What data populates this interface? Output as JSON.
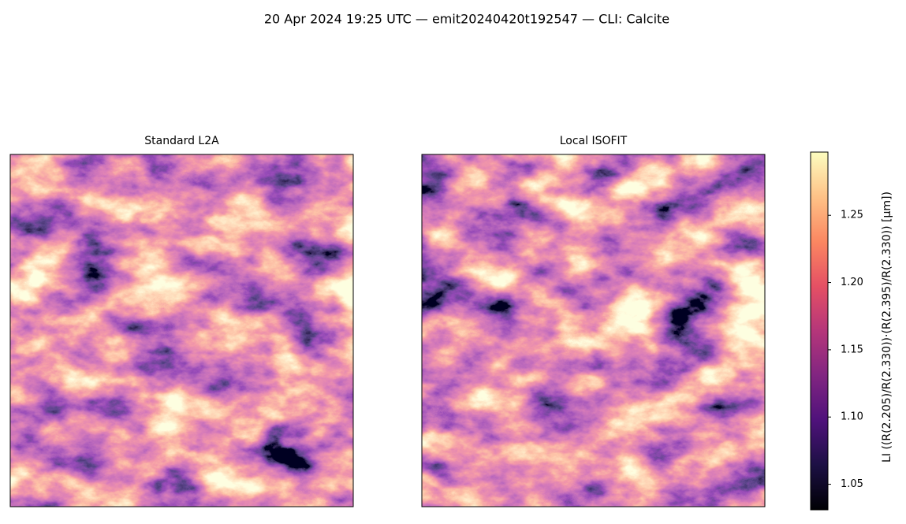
{
  "chart_data": {
    "type": "heatmap",
    "title": "20 Apr 2024 19:25 UTC — emit20240420t192547 — CLI: Calcite",
    "panels": [
      {
        "title": "Standard L2A"
      },
      {
        "title": "Local ISOFIT"
      }
    ],
    "colormap": "magma",
    "colorbar": {
      "label": "LI  ((R(2.205)/R(2.330))·(R(2.395)/R(2.330))  [μm])",
      "ylim": [
        1.031,
        1.297
      ],
      "yticks": [
        1.05,
        {
          "value": 1.1,
          "label": "1.10"
        },
        1.15,
        {
          "value": 1.2,
          "label": "1.20"
        },
        1.25
      ]
    }
  }
}
